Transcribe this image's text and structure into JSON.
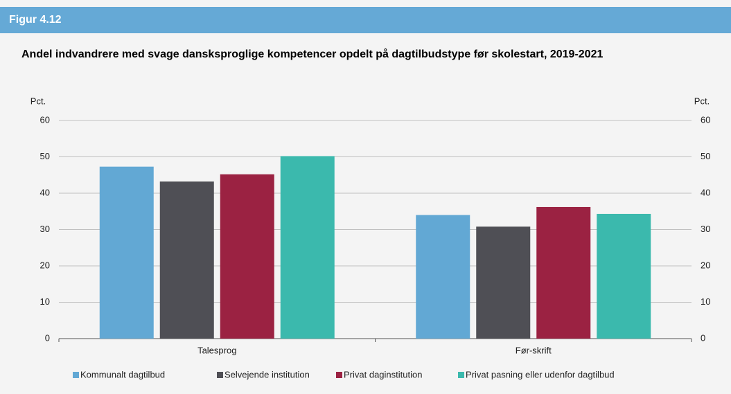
{
  "figure_label": "Figur 4.12",
  "chart_data": {
    "type": "bar",
    "title": "Andel indvandrere med svage dansksproglige kompetencer opdelt på dagtilbudstype før skolestart, 2019-2021",
    "y_label": "Pct.",
    "y2_label": "Pct.",
    "categories": [
      "Talesprog",
      "Før-skrift"
    ],
    "series": [
      {
        "name": "Kommunalt dagtilbud",
        "color": "#62a8d4",
        "values": [
          47.3,
          34.0
        ]
      },
      {
        "name": "Selvejende institution",
        "color": "#4f4f55",
        "values": [
          43.2,
          30.8
        ]
      },
      {
        "name": "Privat daginstitution",
        "color": "#9b2242",
        "values": [
          45.2,
          36.2
        ]
      },
      {
        "name": "Privat pasning eller udenfor dagtilbud",
        "color": "#3bb9ad",
        "values": [
          50.2,
          34.3
        ]
      }
    ],
    "ylim": [
      0,
      60
    ],
    "yticks": [
      0,
      10,
      20,
      30,
      40,
      50,
      60
    ],
    "y2lim": [
      0,
      60
    ],
    "y2ticks": [
      0,
      10,
      20,
      30,
      40,
      50,
      60
    ],
    "grid": true,
    "legend": "bottom"
  }
}
